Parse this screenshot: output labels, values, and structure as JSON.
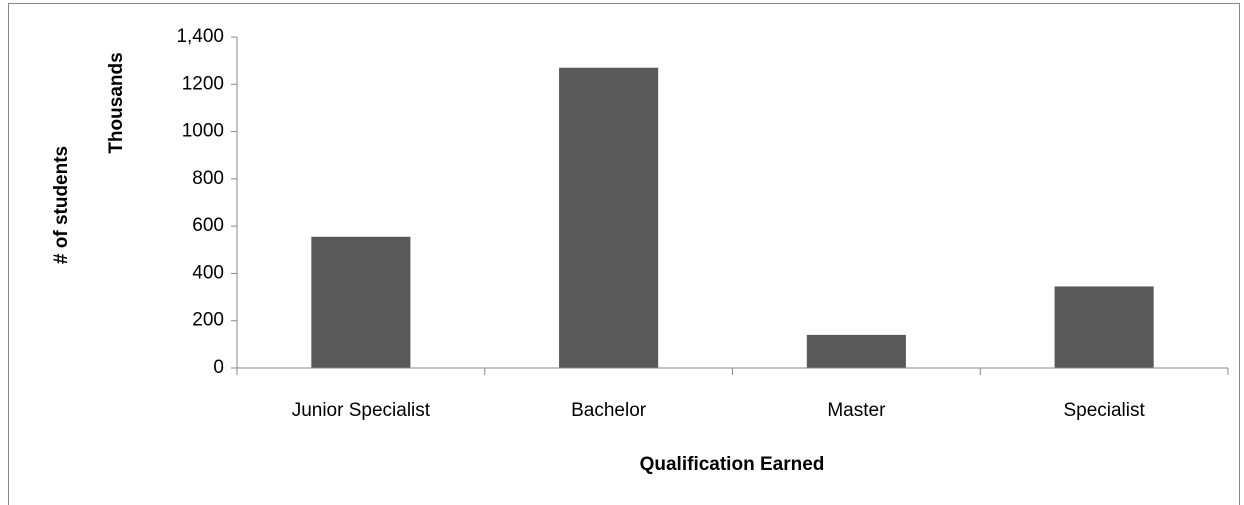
{
  "chart_data": {
    "type": "bar",
    "categories": [
      "Junior Specialist",
      "Bachelor",
      "Master",
      "Specialist"
    ],
    "values": [
      555,
      1270,
      140,
      345
    ],
    "color": "#595959",
    "ylim": [
      0,
      1400
    ],
    "yticks": [
      0,
      200,
      400,
      600,
      800,
      1000,
      1200,
      {
        "value": 1400,
        "label": "1,400"
      }
    ],
    "y_axis_label": "# of students",
    "y_axis_unit": "Thousands",
    "x_axis_label": "Qualification Earned",
    "grid": false
  }
}
